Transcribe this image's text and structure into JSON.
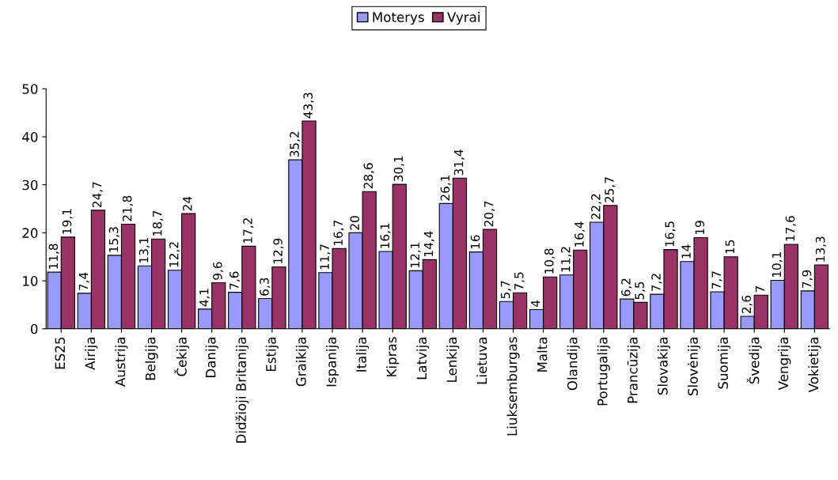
{
  "chart_data": {
    "type": "bar",
    "categories": [
      "ES25",
      "Airija",
      "Austrija",
      "Belgija",
      "Čekija",
      "Danija",
      "Didžioji Britanija",
      "Estija",
      "Graikija",
      "Ispanija",
      "Italija",
      "Kipras",
      "Latvija",
      "Lenkija",
      "Lietuva",
      "Liuksemburgas",
      "Malta",
      "Olandija",
      "Portugalija",
      "Prancūzija",
      "Slovakija",
      "Slovėnija",
      "Suomija",
      "Švedija",
      "Vengrija",
      "Vokietija"
    ],
    "series": [
      {
        "name": "Moterys",
        "color": "#9999ff",
        "values": [
          11.8,
          7.4,
          15.3,
          13.1,
          12.2,
          4.1,
          7.6,
          6.3,
          35.2,
          11.7,
          20,
          16.1,
          12.1,
          26.1,
          16,
          5.7,
          4,
          11.2,
          22.2,
          6.2,
          7.2,
          14,
          7.7,
          2.6,
          10.1,
          7.9
        ],
        "value_labels": [
          "11,8",
          "7,4",
          "15,3",
          "13,1",
          "12,2",
          "4,1",
          "7,6",
          "6,3",
          "35,2",
          "11,7",
          "20",
          "16,1",
          "12,1",
          "26,1",
          "16",
          "5,7",
          "4",
          "11,2",
          "22,2",
          "6,2",
          "7,2",
          "14",
          "7,7",
          "2,6",
          "10,1",
          "7,9"
        ]
      },
      {
        "name": "Vyrai",
        "color": "#993366",
        "values": [
          19.1,
          24.7,
          21.8,
          18.7,
          24,
          9.6,
          17.2,
          12.9,
          43.3,
          16.7,
          28.6,
          30.1,
          14.4,
          31.4,
          20.7,
          7.5,
          10.8,
          16.4,
          25.7,
          5.5,
          16.5,
          19,
          15,
          7,
          17.6,
          13.3
        ],
        "value_labels": [
          "19,1",
          "24,7",
          "21,8",
          "18,7",
          "24",
          "9,6",
          "17,2",
          "12,9",
          "43,3",
          "16,7",
          "28,6",
          "30,1",
          "14,4",
          "31,4",
          "20,7",
          "7,5",
          "10,8",
          "16,4",
          "25,7",
          "5,5",
          "16,5",
          "19",
          "15",
          "7",
          "17,6",
          "13,3"
        ]
      }
    ],
    "ylim": [
      0,
      50
    ],
    "yticks": [
      0,
      10,
      20,
      30,
      40,
      50
    ],
    "legend": "top",
    "grid": false
  }
}
